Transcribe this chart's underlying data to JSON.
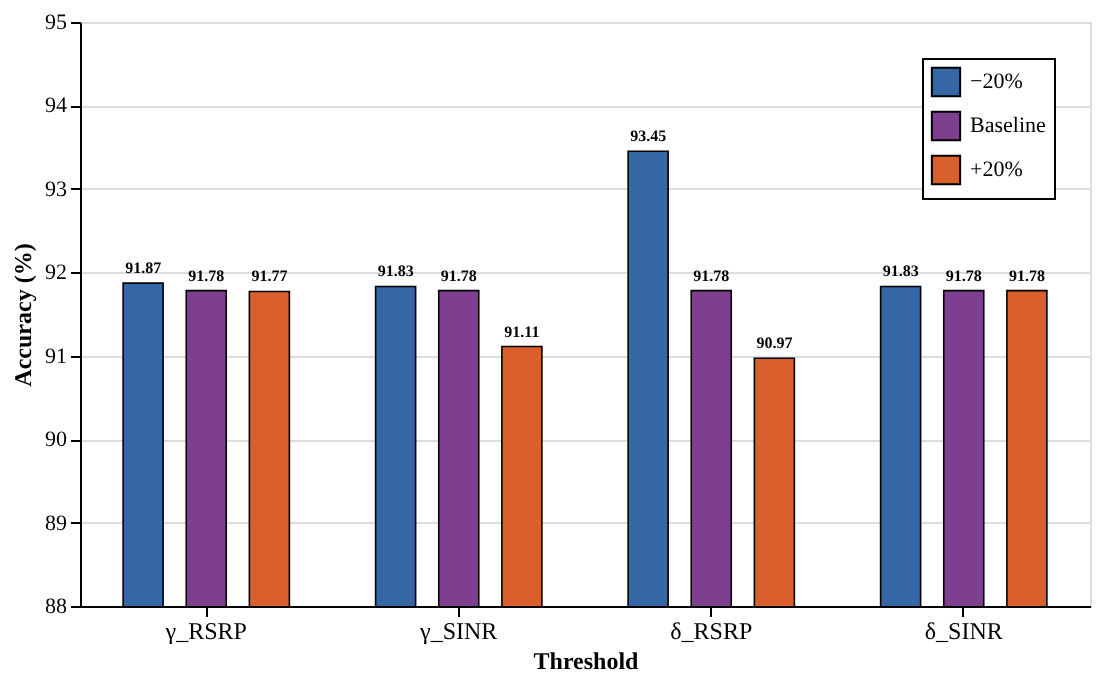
{
  "chart_data": {
    "type": "bar",
    "xlabel": "Threshold",
    "ylabel": "Accuracy (%)",
    "categories": [
      "γ_RSRP",
      "γ_SINR",
      "δ_RSRP",
      "δ_SINR"
    ],
    "series": [
      {
        "name": "−20%",
        "color": "#3566a6",
        "values": [
          91.87,
          91.83,
          93.45,
          91.83
        ]
      },
      {
        "name": "Baseline",
        "color": "#7d3f8e",
        "values": [
          91.78,
          91.78,
          91.78,
          91.78
        ]
      },
      {
        "name": "+20%",
        "color": "#d95f2d",
        "values": [
          91.77,
          91.11,
          90.97,
          91.78
        ]
      }
    ],
    "ylim": [
      88,
      95
    ],
    "yticks": [
      88,
      89,
      90,
      91,
      92,
      93,
      94,
      95
    ],
    "grid": "y",
    "legend": "top right",
    "data_labels": true
  }
}
